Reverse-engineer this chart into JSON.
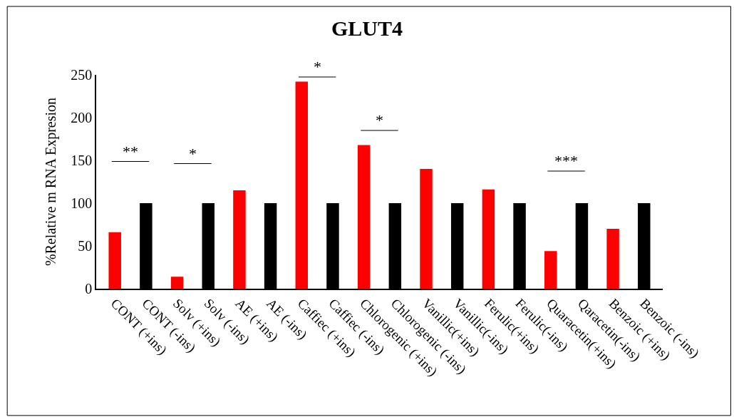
{
  "chart_data": {
    "type": "bar",
    "title": "GLUT4",
    "ylabel": "%Relative m RNA Expresion",
    "categories": [
      "CONT (+ins)",
      "CONT (-ins)",
      "Solv (+ins)",
      "Solv (-ins)",
      "AE (+ins)",
      "AE (-ins)",
      "Caffiec (+ins)",
      "Caffiec (-ins)",
      "Chlorogenic (+ins)",
      "Chlorogenic (-ins)",
      "Vanillic(+ins)",
      "Vanillic(-ins)",
      "Ferulic(+ins)",
      "Ferulic(-ins)",
      "Quaracetin(+ins)",
      "Qaracetin(-ins)",
      "Benzoic (+ins)",
      "Benzoic (-ins)"
    ],
    "values": [
      66,
      100,
      14,
      100,
      115,
      100,
      242,
      100,
      168,
      100,
      140,
      100,
      116,
      100,
      44,
      100,
      70,
      100
    ],
    "colors": [
      "#ff0000",
      "#000000",
      "#ff0000",
      "#000000",
      "#ff0000",
      "#000000",
      "#ff0000",
      "#000000",
      "#ff0000",
      "#000000",
      "#ff0000",
      "#000000",
      "#ff0000",
      "#000000",
      "#ff0000",
      "#000000",
      "#ff0000",
      "#000000"
    ],
    "ylim": [
      0,
      250
    ],
    "yticks": [
      0,
      50,
      100,
      150,
      200,
      250
    ],
    "annotations": [
      "**",
      "*",
      "*",
      "*",
      "***"
    ]
  }
}
